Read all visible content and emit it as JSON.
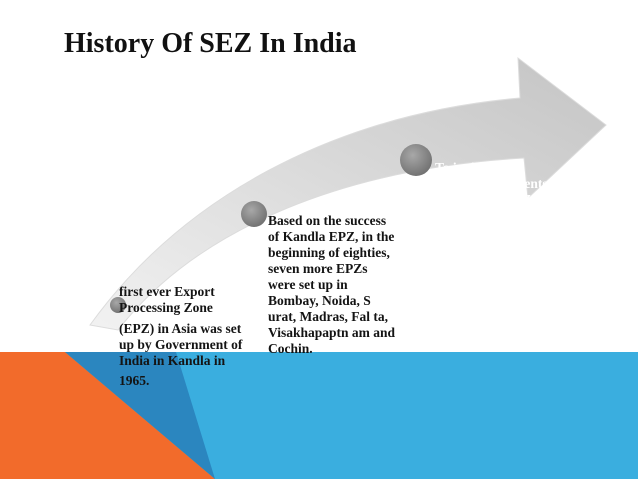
{
  "slide": {
    "title": "History Of SEZ In India",
    "colors": {
      "background": "#ffffff",
      "band_blue": "#3aaedf",
      "band_orange": "#f26b2b",
      "band_triangle": "#2b86bf",
      "arrow_fill": "#d9d9d9",
      "node_dot": "#7f7f7f"
    }
  },
  "timeline": {
    "stages": [
      {
        "lines": [
          "first ever Export Processing Zone",
          "(EPZ) in Asia was set up by Government of India in Kandla in",
          "1965."
        ]
      },
      {
        "lines": [
          "Based on the success of Kandla EPZ, in the beginning of eighties, seven more EPZs were set up in Bombay, Noida, S urat, Madras, Fal ta, Visakhapaptn am and Cochin."
        ]
      },
      {
        "lines": [
          "To invite larger foreign investments in India, these EPZs were converted into Special Economic Zones (SEZs) in the year 2000 under a new policy announced by the Government of India."
        ]
      }
    ]
  }
}
